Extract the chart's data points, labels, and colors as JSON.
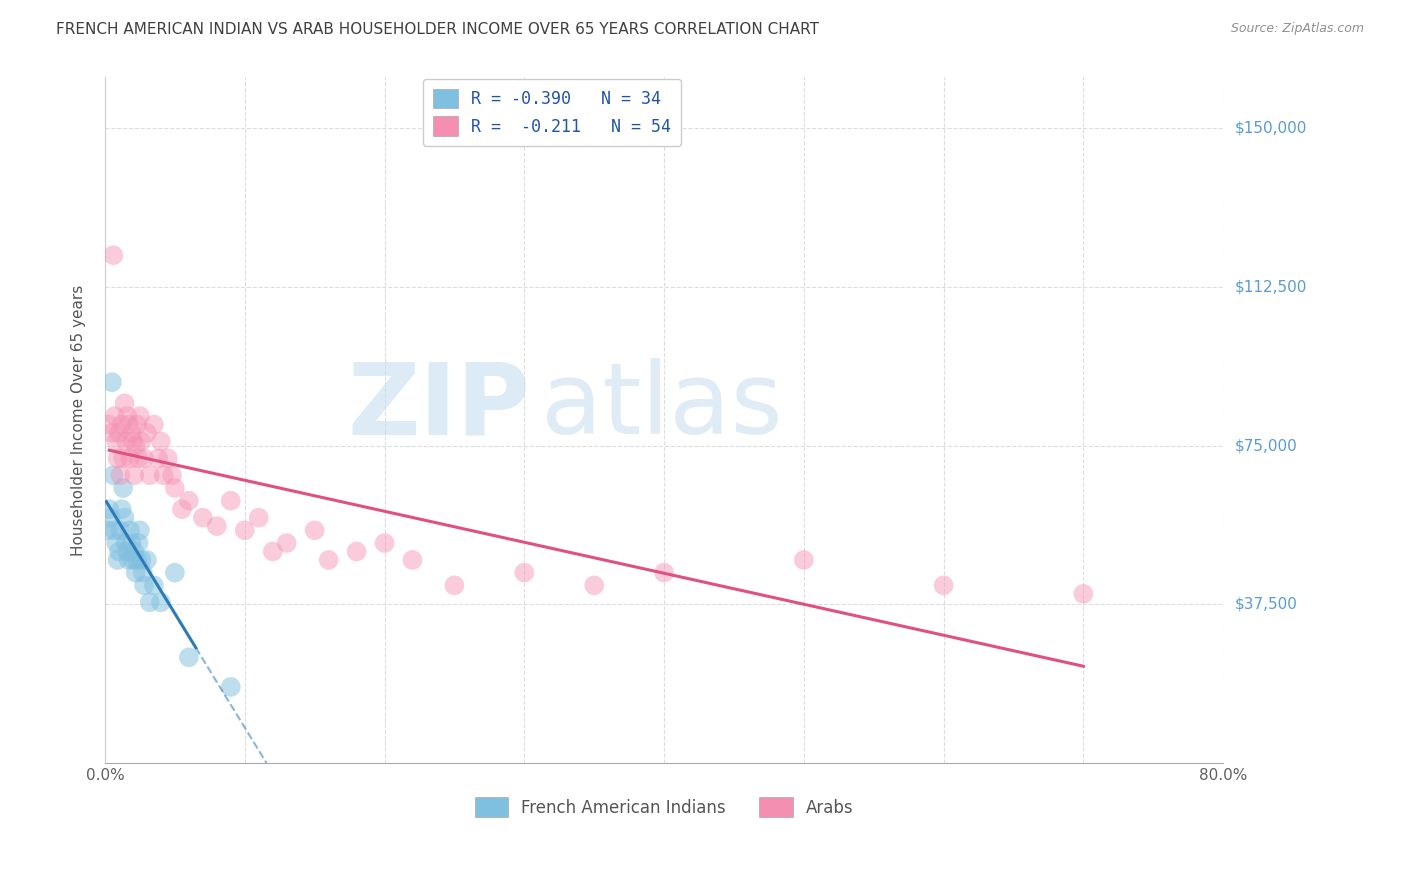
{
  "title": "FRENCH AMERICAN INDIAN VS ARAB HOUSEHOLDER INCOME OVER 65 YEARS CORRELATION CHART",
  "source": "Source: ZipAtlas.com",
  "ylabel": "Householder Income Over 65 years",
  "ytick_labels": [
    "$37,500",
    "$75,000",
    "$112,500",
    "$150,000"
  ],
  "ytick_values": [
    37500,
    75000,
    112500,
    150000
  ],
  "xlim": [
    0.0,
    0.8
  ],
  "ylim": [
    0,
    162000
  ],
  "legend_r_entries": [
    {
      "label": "R = -0.390",
      "n_label": "N = 34",
      "color": "#aec6e8"
    },
    {
      "label": "R =  -0.211",
      "n_label": "N = 54",
      "color": "#f4b8c8"
    }
  ],
  "french_x": [
    0.002,
    0.003,
    0.004,
    0.005,
    0.006,
    0.007,
    0.008,
    0.009,
    0.01,
    0.011,
    0.012,
    0.013,
    0.014,
    0.015,
    0.016,
    0.017,
    0.018,
    0.019,
    0.02,
    0.021,
    0.022,
    0.023,
    0.024,
    0.025,
    0.026,
    0.027,
    0.028,
    0.03,
    0.032,
    0.035,
    0.04,
    0.05,
    0.06,
    0.09
  ],
  "french_y": [
    55000,
    60000,
    58000,
    90000,
    68000,
    55000,
    52000,
    48000,
    50000,
    55000,
    60000,
    65000,
    58000,
    52000,
    50000,
    48000,
    55000,
    52000,
    48000,
    50000,
    45000,
    48000,
    52000,
    55000,
    48000,
    45000,
    42000,
    48000,
    38000,
    42000,
    38000,
    45000,
    25000,
    18000
  ],
  "arab_x": [
    0.003,
    0.005,
    0.006,
    0.007,
    0.008,
    0.009,
    0.01,
    0.011,
    0.012,
    0.013,
    0.014,
    0.015,
    0.016,
    0.017,
    0.018,
    0.019,
    0.02,
    0.021,
    0.022,
    0.023,
    0.024,
    0.025,
    0.026,
    0.028,
    0.03,
    0.032,
    0.035,
    0.038,
    0.04,
    0.042,
    0.045,
    0.048,
    0.05,
    0.055,
    0.06,
    0.07,
    0.08,
    0.09,
    0.1,
    0.11,
    0.12,
    0.13,
    0.15,
    0.16,
    0.18,
    0.2,
    0.22,
    0.25,
    0.3,
    0.35,
    0.4,
    0.5,
    0.6,
    0.7
  ],
  "arab_y": [
    80000,
    78000,
    120000,
    82000,
    76000,
    72000,
    78000,
    68000,
    80000,
    72000,
    85000,
    76000,
    82000,
    80000,
    72000,
    78000,
    76000,
    68000,
    75000,
    80000,
    72000,
    82000,
    76000,
    72000,
    78000,
    68000,
    80000,
    72000,
    76000,
    68000,
    72000,
    68000,
    65000,
    60000,
    62000,
    58000,
    56000,
    62000,
    55000,
    58000,
    50000,
    52000,
    55000,
    48000,
    50000,
    52000,
    48000,
    42000,
    45000,
    42000,
    45000,
    48000,
    42000,
    40000
  ],
  "french_color": "#7fbfdf",
  "arab_color": "#f48fb1",
  "french_line_color": "#2b7bb9",
  "arab_line_color": "#e05080",
  "watermark_zip": "ZIP",
  "watermark_atlas": "atlas",
  "watermark_zip_color": "#c8dff0",
  "watermark_atlas_color": "#c8dff0",
  "background_color": "#ffffff",
  "grid_color": "#dddddd",
  "right_label_color": "#5b9bd5",
  "title_color": "#404040"
}
